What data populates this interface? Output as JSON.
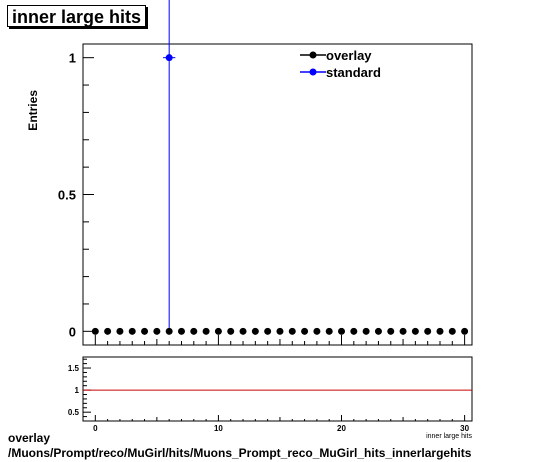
{
  "title": "inner large hits",
  "chart_data": [
    {
      "type": "scatter",
      "ylabel": "Entries",
      "xlabel": "inner large hits",
      "xlim": [
        -1,
        30.6
      ],
      "ylim": [
        -0.05,
        1.05
      ],
      "yticks": [
        {
          "v": 0,
          "label": "0"
        },
        {
          "v": 0.5,
          "label": "0.5"
        },
        {
          "v": 1,
          "label": "1"
        }
      ],
      "xticks": [
        {
          "v": 0,
          "label": "0"
        },
        {
          "v": 10,
          "label": "10"
        },
        {
          "v": 20,
          "label": "20"
        },
        {
          "v": 30,
          "label": "30"
        }
      ],
      "legend_position": "top-right",
      "series": [
        {
          "name": "overlay",
          "color": "#000000",
          "x": [
            0,
            1,
            2,
            3,
            4,
            5,
            6,
            7,
            8,
            9,
            10,
            11,
            12,
            13,
            14,
            15,
            16,
            17,
            18,
            19,
            20,
            21,
            22,
            23,
            24,
            25,
            26,
            27,
            28,
            29,
            30
          ],
          "y": [
            0,
            0,
            0,
            0,
            0,
            0,
            0,
            0,
            0,
            0,
            0,
            0,
            0,
            0,
            0,
            0,
            0,
            0,
            0,
            0,
            0,
            0,
            0,
            0,
            0,
            0,
            0,
            0,
            0,
            0,
            0
          ]
        },
        {
          "name": "standard",
          "color": "#0000ff",
          "x": [
            6
          ],
          "y": [
            1
          ],
          "yerr": [
            1
          ]
        }
      ]
    },
    {
      "type": "line",
      "ylim": [
        0.3,
        1.75
      ],
      "yticks": [
        {
          "v": 0.5,
          "label": "0.5"
        },
        {
          "v": 1,
          "label": "1"
        },
        {
          "v": 1.5,
          "label": "1.5"
        }
      ],
      "xticks": [
        {
          "v": 0,
          "label": "0"
        },
        {
          "v": 10,
          "label": "10"
        },
        {
          "v": 20,
          "label": "20"
        },
        {
          "v": 30,
          "label": "30"
        }
      ],
      "reference_line": 1,
      "reference_color": "#cc0000"
    }
  ],
  "footer": {
    "line1": "overlay",
    "line2": "/Muons/Prompt/reco/MuGirl/hits/Muons_Prompt_reco_MuGirl_hits_innerlargehits"
  }
}
